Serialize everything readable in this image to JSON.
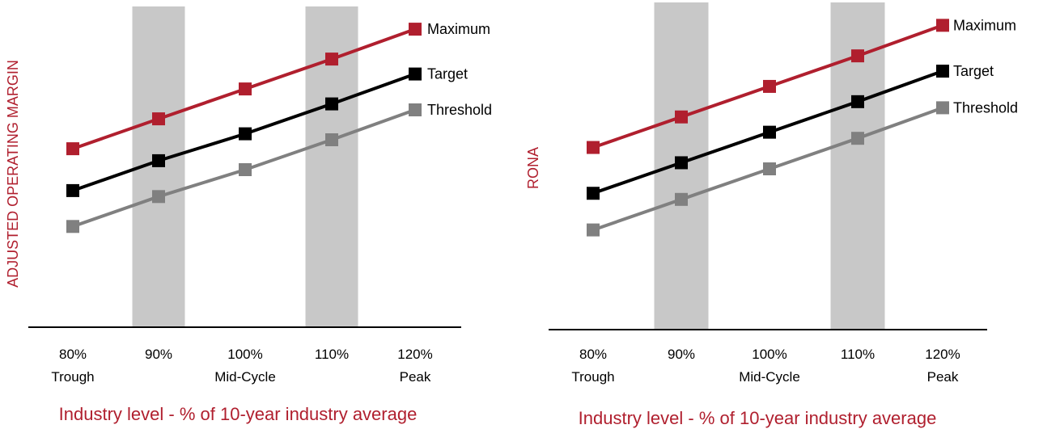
{
  "colors": {
    "accent": "#b01f2e",
    "band": "#c8c8c8",
    "axis": "#000000"
  },
  "chart_data": [
    {
      "type": "line",
      "ylabel": "ADJUSTED OPERATING MARGIN",
      "xlabel": "Industry level - % of 10-year industry average",
      "categories": [
        "80%",
        "90%",
        "100%",
        "110%",
        "120%"
      ],
      "subcategories": [
        "Trough",
        "",
        "Mid-Cycle",
        "",
        "Peak"
      ],
      "x": [
        80,
        90,
        100,
        110,
        120
      ],
      "ylim": [
        0,
        10
      ],
      "shaded_bands": [
        "90%",
        "110%"
      ],
      "legend": "right of line ends",
      "series": [
        {
          "name": "Maximum",
          "color": "#b01f2e",
          "values": [
            5.7,
            6.7,
            7.7,
            8.7,
            9.7
          ]
        },
        {
          "name": "Target",
          "color": "#000000",
          "values": [
            4.3,
            5.3,
            6.2,
            7.2,
            8.2
          ]
        },
        {
          "name": "Threshold",
          "color": "#808080",
          "values": [
            3.1,
            4.1,
            5.0,
            6.0,
            7.0
          ]
        }
      ]
    },
    {
      "type": "line",
      "ylabel": "RONA",
      "xlabel": "Industry level - % of 10-year industry average",
      "categories": [
        "80%",
        "90%",
        "100%",
        "110%",
        "120%"
      ],
      "subcategories": [
        "Trough",
        "",
        "Mid-Cycle",
        "",
        "Peak"
      ],
      "x": [
        80,
        90,
        100,
        110,
        120
      ],
      "ylim": [
        0,
        10
      ],
      "shaded_bands": [
        "90%",
        "110%"
      ],
      "legend": "right of line ends",
      "series": [
        {
          "name": "Maximum",
          "color": "#b01f2e",
          "values": [
            5.7,
            6.7,
            7.7,
            8.7,
            9.7
          ]
        },
        {
          "name": "Target",
          "color": "#000000",
          "values": [
            4.2,
            5.2,
            6.2,
            7.2,
            8.2
          ]
        },
        {
          "name": "Threshold",
          "color": "#808080",
          "values": [
            3.0,
            4.0,
            5.0,
            6.0,
            7.0
          ]
        }
      ]
    }
  ]
}
